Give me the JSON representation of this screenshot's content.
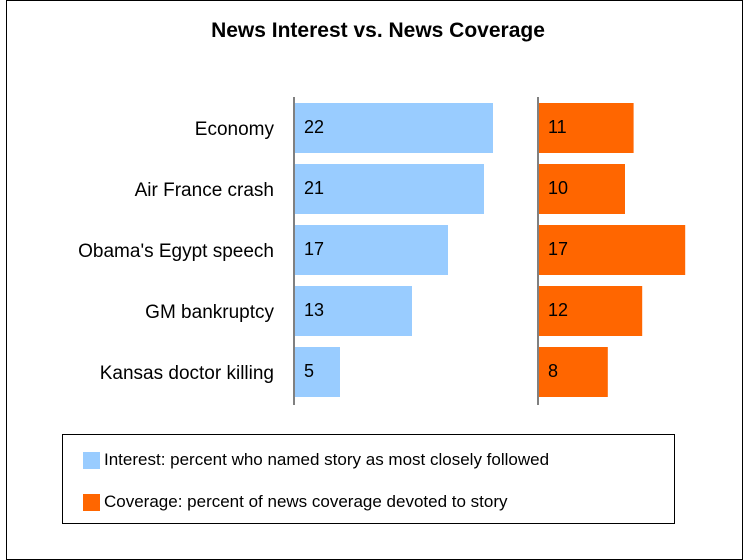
{
  "chart_data": {
    "type": "bar",
    "title": "News Interest vs. News Coverage",
    "categories": [
      "Economy",
      "Air France crash",
      "Obama's Egypt speech",
      "GM bankruptcy",
      "Kansas doctor killing"
    ],
    "series": [
      {
        "name": "Interest: percent who named story as most closely followed",
        "values": [
          22,
          21,
          17,
          13,
          5
        ],
        "color": "#99ccff"
      },
      {
        "name": "Coverage: percent of news coverage devoted to story",
        "values": [
          11,
          10,
          17,
          12,
          8
        ],
        "color": "#ff6600"
      }
    ],
    "orientation": "horizontal",
    "layout": "two side-by-side panels sharing category labels",
    "grid": false,
    "legend_position": "bottom"
  }
}
